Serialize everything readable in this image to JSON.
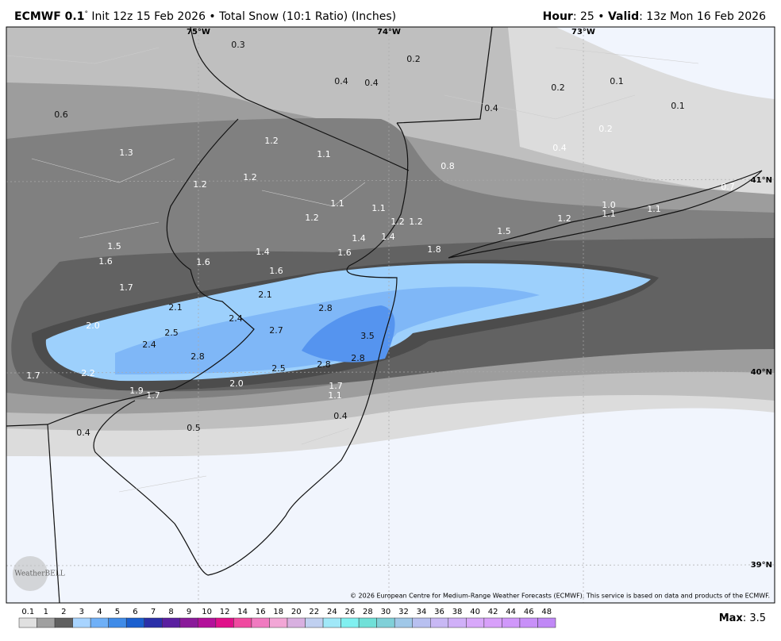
{
  "header": {
    "model": "ECMWF 0.1",
    "degree": "°",
    "description": "Init 12z 15 Feb 2026 • Total Snow (10:1 Ratio) (Inches)",
    "hour_label": "Hour",
    "hour_value": ": 25 • ",
    "valid_label": "Valid",
    "valid_value": ": 13z Mon 16 Feb 2026"
  },
  "map": {
    "longitudes": [
      "75°W",
      "74°W",
      "73°W"
    ],
    "latitudes": [
      "41°N",
      "40°N",
      "39°N"
    ],
    "labels": [
      "0.3",
      "0.2",
      "0.4",
      "0.4",
      "0.2",
      "0.1",
      "0.1",
      "0.4",
      "0.6",
      "0.2",
      "0.4",
      "1.2",
      "1.3",
      "1.1",
      "0.8",
      "1.2",
      "1.2",
      "0.7",
      "1.1",
      "1.1",
      "1.0",
      "1.2",
      "1.2",
      "1.2",
      "1.1",
      "1.1",
      "1.2",
      "1.5",
      "1.4",
      "1.4",
      "1.5",
      "1.8",
      "1.4",
      "1.6",
      "1.6",
      "1.6",
      "1.6",
      "1.7",
      "2.1",
      "2.1",
      "2.8",
      "2.4",
      "2.0",
      "2.7",
      "2.5",
      "3.5",
      "2.4",
      "2.8",
      "2.8",
      "2.5",
      "2.8",
      "2.2",
      "1.7",
      "2.0",
      "1.7",
      "1.9",
      "1.7",
      "1.1",
      "0.4",
      "0.5",
      "0.4"
    ],
    "logo": "WeatherBELL",
    "copyright": "© 2026 European Centre for Medium-Range Weather Forecasts (ECMWF). This service is based on data and products of the ECMWF."
  },
  "colorbar": {
    "labels": [
      "0.1",
      "1",
      "2",
      "3",
      "4",
      "5",
      "6",
      "7",
      "8",
      "9",
      "10",
      "12",
      "14",
      "16",
      "18",
      "20",
      "22",
      "24",
      "26",
      "28",
      "30",
      "32",
      "34",
      "36",
      "38",
      "40",
      "42",
      "44",
      "46",
      "48"
    ],
    "colors": [
      "#e0e0e0",
      "#a0a0a0",
      "#606060",
      "#a8d4ff",
      "#6fb0f7",
      "#3f8be8",
      "#1a5fcf",
      "#2a2fa8",
      "#5a1fa0",
      "#8a1a9a",
      "#b3109a",
      "#e0108a",
      "#f04aa0",
      "#f07ac0",
      "#f2a6d6",
      "#d8b0e0",
      "#c0d0f0",
      "#a0e8f8",
      "#80f0f0",
      "#70e0d8",
      "#80d0d8",
      "#a0c8e8",
      "#b8c0f0",
      "#c8b8f4",
      "#d0b0f8",
      "#d8a8fa",
      "#d8a0fa",
      "#d098fa",
      "#c890f8",
      "#c088f6"
    ],
    "max_label": "Max",
    "max_value": ": 3.5"
  }
}
